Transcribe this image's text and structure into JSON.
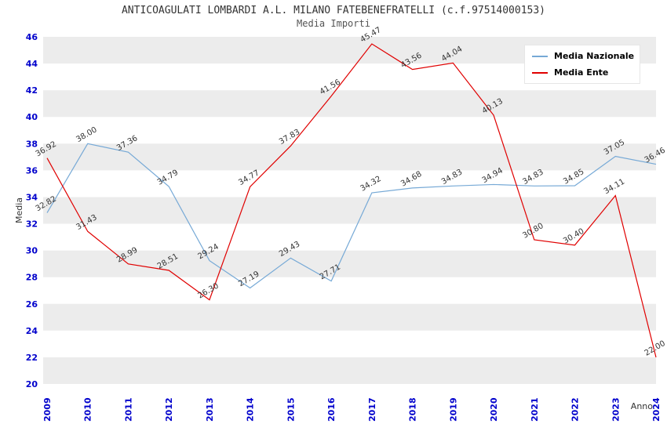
{
  "header": {
    "title": "ANTICOAGULATI LOMBARDI A.L. MILANO FATEBENEFRATELLI (c.f.97514000153)",
    "subtitle": "Media Importi"
  },
  "axes": {
    "ylabel": "Media",
    "xlabel": "Anno"
  },
  "legend": {
    "items": [
      {
        "label": "Media Nazionale",
        "color": "#76a9d6"
      },
      {
        "label": "Media Ente",
        "color": "#e00000"
      }
    ]
  },
  "colors": {
    "band": "#ececec",
    "tick_blue": "#0000cc",
    "point_label": "#333333"
  },
  "chart_data": {
    "type": "line",
    "x": [
      "2009",
      "2010",
      "2011",
      "2012",
      "2013",
      "2014",
      "2015",
      "2016",
      "2017",
      "2018",
      "2019",
      "2020",
      "2021",
      "2022",
      "2023",
      "2024"
    ],
    "series": [
      {
        "name": "Media Nazionale",
        "color": "#76a9d6",
        "values": [
          32.82,
          38.0,
          37.36,
          34.79,
          29.24,
          27.19,
          29.43,
          27.71,
          34.32,
          34.68,
          34.83,
          34.94,
          34.83,
          34.85,
          37.05,
          36.46
        ]
      },
      {
        "name": "Media Ente",
        "color": "#e00000",
        "values": [
          36.92,
          31.43,
          28.99,
          28.51,
          26.3,
          34.77,
          37.83,
          41.56,
          45.47,
          43.56,
          44.04,
          40.13,
          30.8,
          30.4,
          34.11,
          22.0
        ]
      }
    ],
    "ylim": [
      20,
      46
    ],
    "ytick_step": 2,
    "grid": "alternating-horizontal-bands",
    "legend_position": "top-right",
    "title": "ANTICOAGULATI LOMBARDI A.L. MILANO FATEBENEFRATELLI (c.f.97514000153)",
    "subtitle": "Media Importi",
    "xlabel": "Anno",
    "ylabel": "Media"
  }
}
